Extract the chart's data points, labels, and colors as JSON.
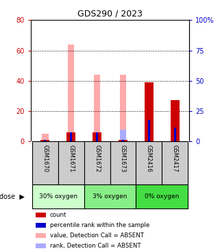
{
  "title": "GDS290 / 2023",
  "samples": [
    "GSM1670",
    "GSM1671",
    "GSM1672",
    "GSM1673",
    "GSM2416",
    "GSM2417"
  ],
  "groups": [
    {
      "label": "30% oxygen",
      "color": "#ccffcc"
    },
    {
      "label": "3% oxygen",
      "color": "#88ee88"
    },
    {
      "label": "0% oxygen",
      "color": "#44dd44"
    }
  ],
  "group_ranges": [
    [
      0,
      1
    ],
    [
      2,
      3
    ],
    [
      4,
      5
    ]
  ],
  "count_values": [
    1,
    6,
    6,
    1,
    39,
    27
  ],
  "percentile_values": [
    1,
    6,
    6,
    1,
    14,
    9
  ],
  "absent_value_vals": [
    5,
    64,
    44,
    44,
    0,
    0
  ],
  "absent_rank_vals": [
    0,
    6,
    6,
    8,
    0,
    0
  ],
  "left_ylim": [
    0,
    80
  ],
  "right_ylim": [
    0,
    100
  ],
  "left_yticks": [
    0,
    20,
    40,
    60,
    80
  ],
  "right_yticks": [
    0,
    25,
    50,
    75,
    100
  ],
  "left_yticklabels": [
    "0",
    "20",
    "40",
    "60",
    "80"
  ],
  "right_yticklabels": [
    "0",
    "25",
    "50",
    "75",
    "100%"
  ],
  "color_count": "#cc0000",
  "color_percentile": "#0000cc",
  "color_absent_value": "#ffaaaa",
  "color_absent_rank": "#aaaaff",
  "bar_width": 0.35,
  "absent_bar_width": 0.25,
  "sample_box_color": "#cccccc",
  "legend_items": [
    {
      "color": "#cc0000",
      "label": "count"
    },
    {
      "color": "#0000cc",
      "label": "percentile rank within the sample"
    },
    {
      "color": "#ffaaaa",
      "label": "value, Detection Call = ABSENT"
    },
    {
      "color": "#aaaaff",
      "label": "rank, Detection Call = ABSENT"
    }
  ]
}
